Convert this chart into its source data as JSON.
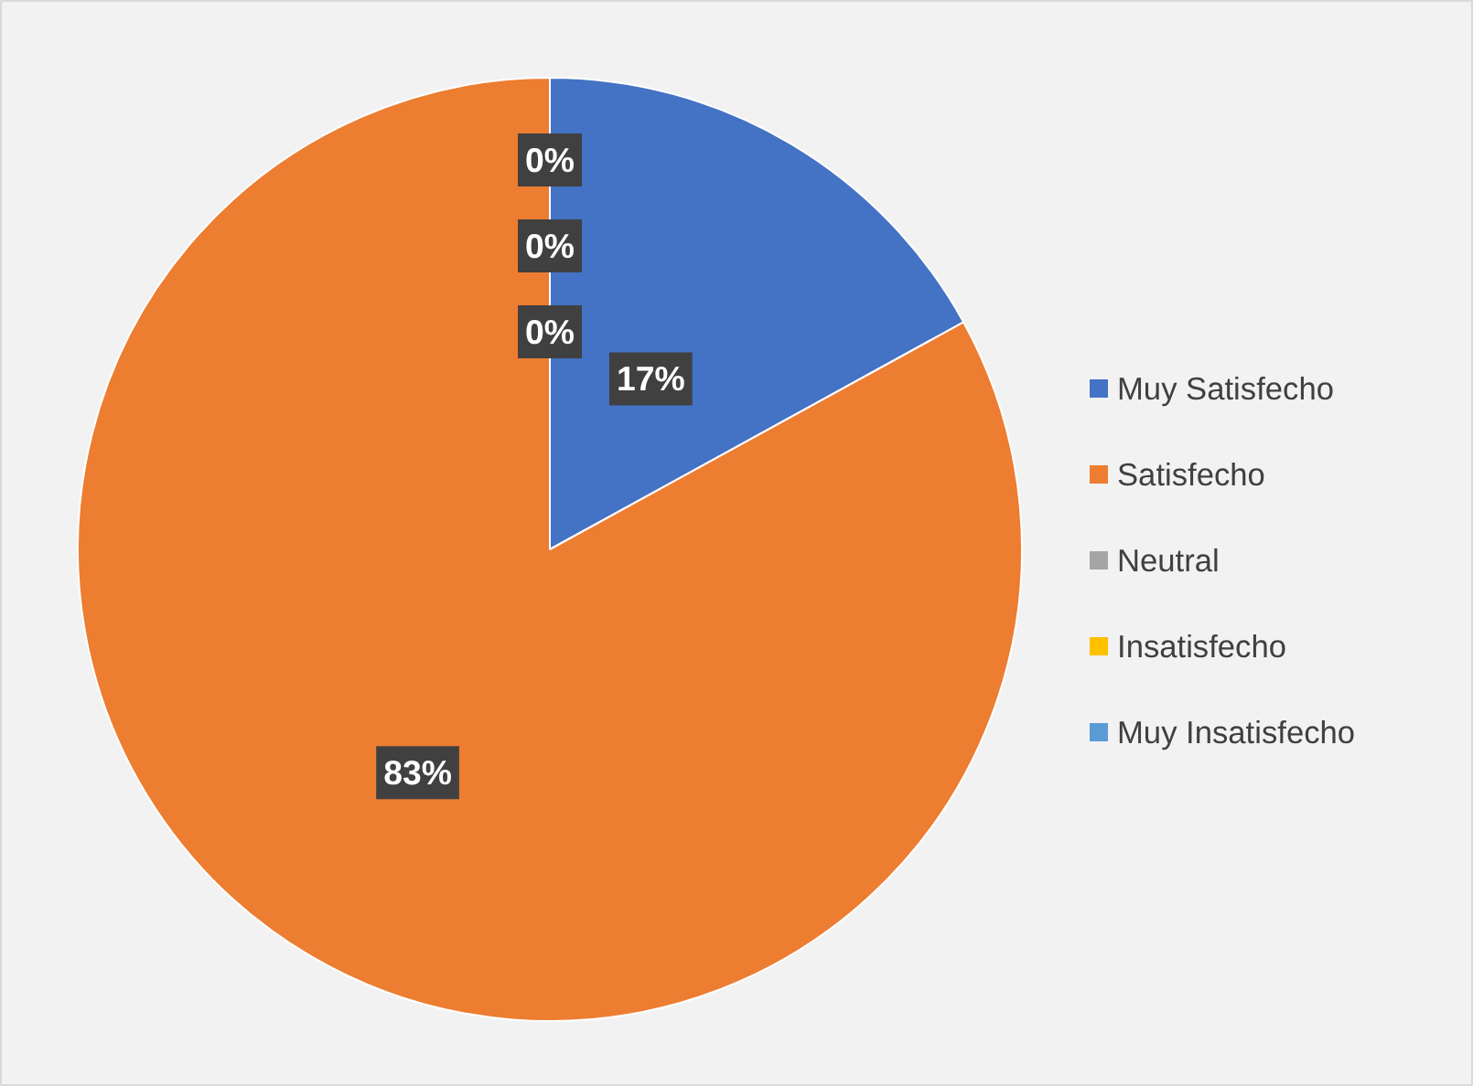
{
  "chart_data": {
    "type": "pie",
    "categories": [
      "Muy Satisfecho",
      "Satisfecho",
      "Neutral",
      "Insatisfecho",
      "Muy Insatisfecho"
    ],
    "values": [
      17,
      83,
      0,
      0,
      0
    ],
    "colors": [
      "#4472c4",
      "#ed7d31",
      "#a5a5a5",
      "#ffc000",
      "#5b9bd5"
    ],
    "value_labels": [
      "17%",
      "83%",
      "0%",
      "0%",
      "0%"
    ],
    "legend": "right"
  }
}
